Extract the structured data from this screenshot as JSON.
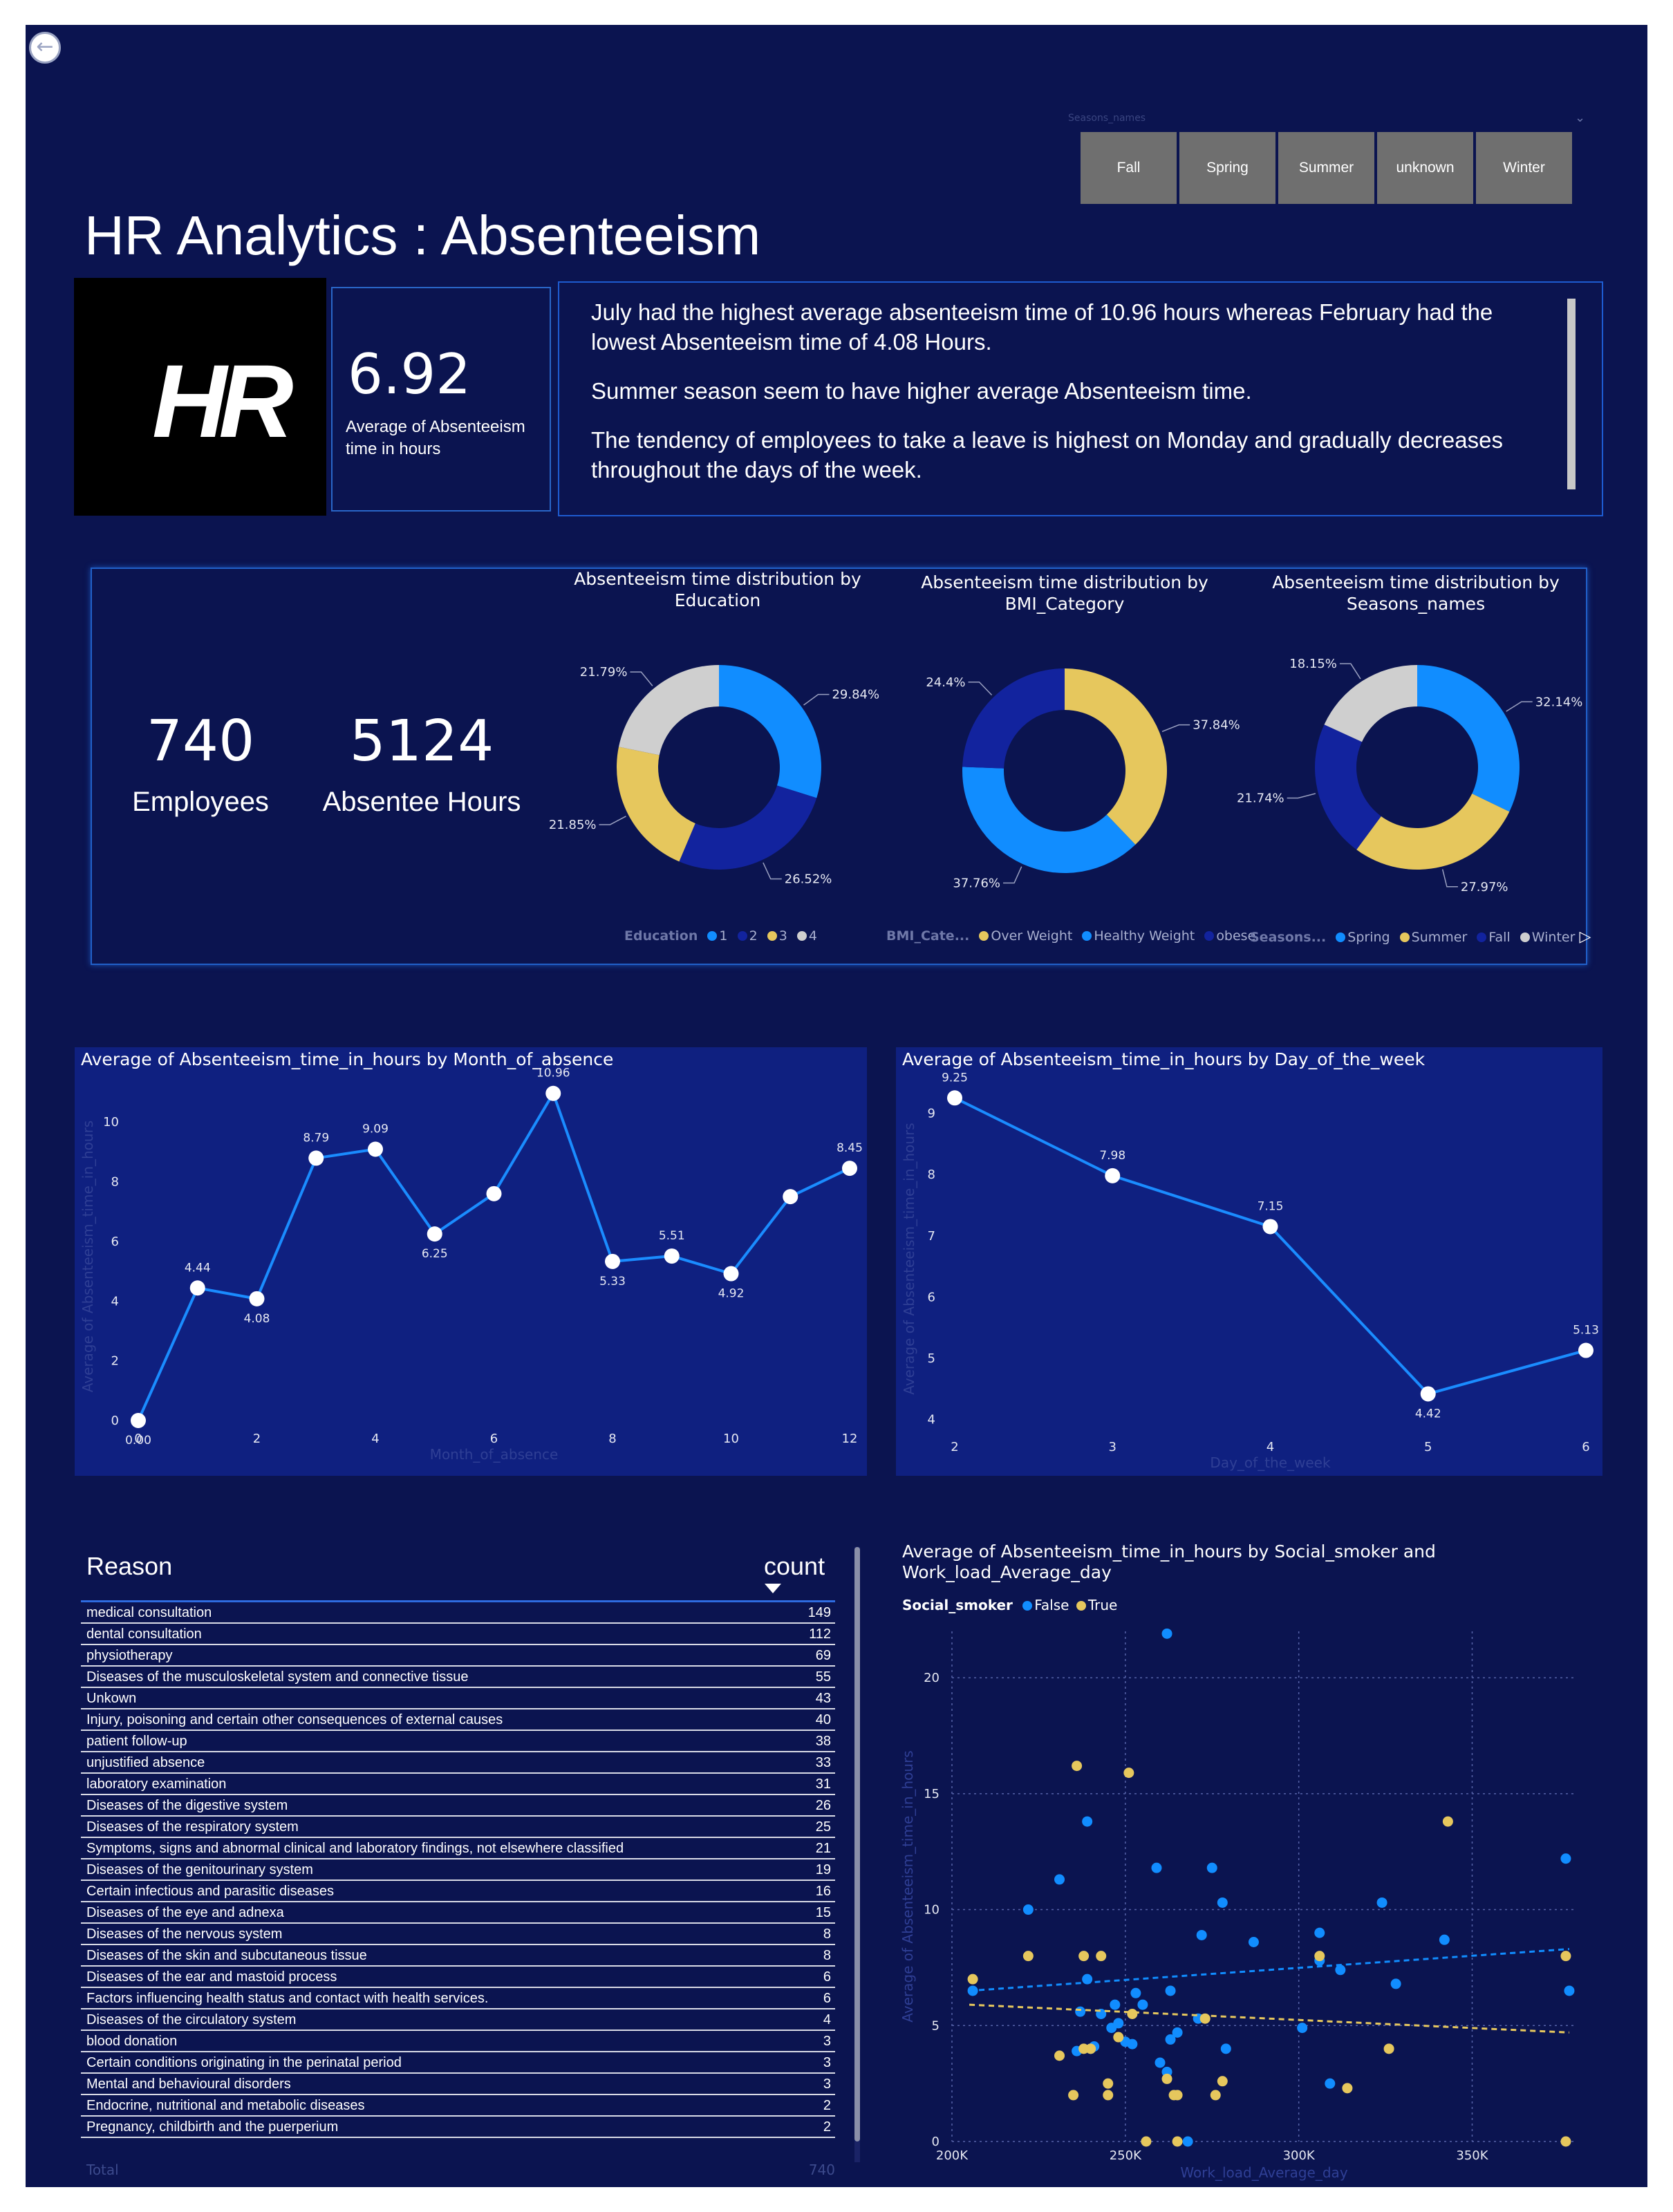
{
  "nav": {
    "back_icon": "arrow-left-icon"
  },
  "slicer": {
    "caption": "Seasons_names",
    "options": [
      "Fall",
      "Spring",
      "Summer",
      "unknown",
      "Winter"
    ]
  },
  "title": "HR Analytics : Absenteeism",
  "logo": {
    "text": "HR"
  },
  "kpi": {
    "value": "6.92",
    "label": "Average of Absenteeism time in hours"
  },
  "insights": [
    "July had the highest average absenteeism time of 10.96 hours whereas February had the lowest Absenteeism time of 4.08 Hours.",
    "Summer season seem to have higher average Absenteeism time.",
    "The tendency of employees to take a leave is highest on Monday and gradually decreases throughout the days of the week."
  ],
  "stats": {
    "employees_value": "740",
    "employees_label": "Employees",
    "hours_value": "5124",
    "hours_label": "Absentee Hours"
  },
  "colors": {
    "blue": "#118dff",
    "navy": "#12239e",
    "yellow": "#e6c75d",
    "grey": "#cfcfcf",
    "line": "#1a8cff"
  },
  "chart_data": [
    {
      "type": "pie",
      "title": "Absenteeism time distribution by Education",
      "legend_title": "Education",
      "legend": [
        "1",
        "2",
        "3",
        "4"
      ],
      "slices": [
        {
          "label": "1",
          "value": 29.84,
          "text": "29.84%",
          "color": "#118dff"
        },
        {
          "label": "2",
          "value": 26.52,
          "text": "26.52%",
          "color": "#12239e"
        },
        {
          "label": "3",
          "value": 21.85,
          "text": "21.85%",
          "color": "#e6c75d"
        },
        {
          "label": "4",
          "value": 21.79,
          "text": "21.79%",
          "color": "#cfcfcf"
        }
      ]
    },
    {
      "type": "pie",
      "title": "Absenteeism time distribution by BMI_Category",
      "legend_title": "BMI_Cate...",
      "legend": [
        "Over Weight",
        "Healthy Weight",
        "obese"
      ],
      "slices": [
        {
          "label": "Over Weight",
          "value": 37.84,
          "text": "37.84%",
          "color": "#e6c75d"
        },
        {
          "label": "Healthy Weight",
          "value": 37.76,
          "text": "37.76%",
          "color": "#118dff"
        },
        {
          "label": "obese",
          "value": 24.4,
          "text": "24.4%",
          "color": "#12239e"
        }
      ]
    },
    {
      "type": "pie",
      "title": "Absenteeism time distribution by Seasons_names",
      "legend_title": "Seasons...",
      "legend": [
        "Spring",
        "Summer",
        "Fall",
        "Winter"
      ],
      "slices": [
        {
          "label": "Spring",
          "value": 32.14,
          "text": "32.14%",
          "color": "#118dff"
        },
        {
          "label": "Summer",
          "value": 27.97,
          "text": "27.97%",
          "color": "#e6c75d"
        },
        {
          "label": "Fall",
          "value": 21.74,
          "text": "21.74%",
          "color": "#12239e"
        },
        {
          "label": "Winter",
          "value": 18.15,
          "text": "18.15%",
          "color": "#cfcfcf"
        }
      ]
    },
    {
      "type": "line",
      "title": "Average of Absenteeism_time_in_hours by Month_of_absence",
      "xlabel": "Month_of_absence",
      "ylabel": "Average of Absenteeism_time_in_hours",
      "xlim": [
        0,
        12
      ],
      "ylim": [
        0,
        11
      ],
      "xticks": [
        0,
        2,
        4,
        6,
        8,
        10,
        12
      ],
      "yticks": [
        0,
        2,
        4,
        6,
        8,
        10
      ],
      "points": [
        {
          "x": 0,
          "y": 0,
          "label": "0.00"
        },
        {
          "x": 1,
          "y": 4.44,
          "label": "4.44"
        },
        {
          "x": 2,
          "y": 4.08,
          "label": "4.08"
        },
        {
          "x": 3,
          "y": 8.79,
          "label": "8.79"
        },
        {
          "x": 4,
          "y": 9.09,
          "label": "9.09"
        },
        {
          "x": 5,
          "y": 6.25,
          "label": "6.25"
        },
        {
          "x": 6,
          "y": 7.6,
          "label": ""
        },
        {
          "x": 7,
          "y": 10.96,
          "label": "10.96"
        },
        {
          "x": 8,
          "y": 5.33,
          "label": "5.33"
        },
        {
          "x": 9,
          "y": 5.51,
          "label": "5.51"
        },
        {
          "x": 10,
          "y": 4.92,
          "label": "4.92"
        },
        {
          "x": 11,
          "y": 7.5,
          "label": ""
        },
        {
          "x": 12,
          "y": 8.45,
          "label": "8.45"
        }
      ]
    },
    {
      "type": "line",
      "title": "Average of Absenteeism_time_in_hours by Day_of_the_week",
      "xlabel": "Day_of_the_week",
      "ylabel": "Average of Absenteeism_time_in_hours",
      "xlim": [
        2,
        6
      ],
      "ylim": [
        3.85,
        9.4
      ],
      "xticks": [
        2,
        3,
        4,
        5,
        6
      ],
      "yticks": [
        4,
        5,
        6,
        7,
        8,
        9
      ],
      "points": [
        {
          "x": 2,
          "y": 9.25,
          "label": "9.25"
        },
        {
          "x": 3,
          "y": 7.98,
          "label": "7.98"
        },
        {
          "x": 4,
          "y": 7.15,
          "label": "7.15"
        },
        {
          "x": 5,
          "y": 4.42,
          "label": "4.42"
        },
        {
          "x": 6,
          "y": 5.13,
          "label": "5.13"
        }
      ]
    },
    {
      "type": "scatter",
      "title": "Average of Absenteeism_time_in_hours by Social_smoker and Work_load_Average_day",
      "legend_title": "Social_smoker",
      "xlabel": "Work_load_Average_day",
      "ylabel": "Average of Absenteeism_time_in_hours",
      "xlim": [
        200000,
        380000
      ],
      "ylim": [
        0,
        22
      ],
      "xticks": [
        {
          "v": 200000,
          "t": "200K"
        },
        {
          "v": 250000,
          "t": "250K"
        },
        {
          "v": 300000,
          "t": "300K"
        },
        {
          "v": 350000,
          "t": "350K"
        }
      ],
      "yticks": [
        0,
        5,
        10,
        15,
        20
      ],
      "series": [
        {
          "name": "False",
          "color": "#118dff",
          "trend": [
            [
              205000,
              6.5
            ],
            [
              378000,
              8.3
            ]
          ],
          "points": [
            [
              206000,
              6.5
            ],
            [
              222000,
              10
            ],
            [
              231000,
              11.3
            ],
            [
              236000,
              3.9
            ],
            [
              237000,
              5.6
            ],
            [
              239000,
              13.8
            ],
            [
              239000,
              7
            ],
            [
              240000,
              4
            ],
            [
              241000,
              4.1
            ],
            [
              243000,
              5.5
            ],
            [
              246000,
              4.9
            ],
            [
              247000,
              5.9
            ],
            [
              248000,
              5.1
            ],
            [
              250000,
              4.3
            ],
            [
              252000,
              4.2
            ],
            [
              253000,
              6.4
            ],
            [
              255000,
              5.9
            ],
            [
              259000,
              11.8
            ],
            [
              260000,
              3.4
            ],
            [
              262000,
              3
            ],
            [
              262000,
              21.9
            ],
            [
              263000,
              6.5
            ],
            [
              263000,
              4.4
            ],
            [
              265000,
              4.7
            ],
            [
              268000,
              0
            ],
            [
              271000,
              5.3
            ],
            [
              272000,
              8.9
            ],
            [
              275000,
              11.8
            ],
            [
              278000,
              10.3
            ],
            [
              279000,
              4
            ],
            [
              287000,
              8.6
            ],
            [
              301000,
              4.9
            ],
            [
              306000,
              9
            ],
            [
              306000,
              7.8
            ],
            [
              312000,
              7.4
            ],
            [
              309000,
              2.5
            ],
            [
              324000,
              10.3
            ],
            [
              328000,
              6.8
            ],
            [
              342000,
              8.7
            ],
            [
              377000,
              12.2
            ],
            [
              378000,
              6.5
            ]
          ]
        },
        {
          "name": "True",
          "color": "#e6c75d",
          "trend": [
            [
              205000,
              5.9
            ],
            [
              378000,
              4.7
            ]
          ],
          "points": [
            [
              206000,
              7
            ],
            [
              222000,
              8
            ],
            [
              231000,
              3.7
            ],
            [
              235000,
              2
            ],
            [
              236000,
              16.2
            ],
            [
              238000,
              8
            ],
            [
              238000,
              4
            ],
            [
              240000,
              4
            ],
            [
              243000,
              8
            ],
            [
              245000,
              2.5
            ],
            [
              245000,
              2
            ],
            [
              248000,
              4.5
            ],
            [
              251000,
              15.9
            ],
            [
              252000,
              5.5
            ],
            [
              256000,
              0
            ],
            [
              262000,
              2.7
            ],
            [
              264000,
              2
            ],
            [
              265000,
              0
            ],
            [
              265000,
              2
            ],
            [
              273000,
              5.3
            ],
            [
              276000,
              2
            ],
            [
              278000,
              2.6
            ],
            [
              306000,
              8
            ],
            [
              314000,
              2.3
            ],
            [
              326000,
              4
            ],
            [
              343000,
              13.8
            ],
            [
              377000,
              8
            ],
            [
              377000,
              0
            ]
          ]
        }
      ]
    }
  ],
  "table": {
    "headers": {
      "reason": "Reason",
      "count": "count"
    },
    "rows": [
      {
        "reason": "medical consultation",
        "count": "149"
      },
      {
        "reason": "dental consultation",
        "count": "112"
      },
      {
        "reason": "physiotherapy",
        "count": "69"
      },
      {
        "reason": "Diseases of the musculoskeletal system and connective tissue",
        "count": "55"
      },
      {
        "reason": "Unkown",
        "count": "43"
      },
      {
        "reason": "Injury, poisoning and certain other consequences of external causes",
        "count": "40"
      },
      {
        "reason": "patient follow-up",
        "count": "38"
      },
      {
        "reason": "unjustified absence",
        "count": "33"
      },
      {
        "reason": "laboratory examination",
        "count": "31"
      },
      {
        "reason": "Diseases of the digestive system",
        "count": "26"
      },
      {
        "reason": "Diseases of the respiratory system",
        "count": "25"
      },
      {
        "reason": "Symptoms, signs and abnormal clinical and laboratory findings, not elsewhere classified",
        "count": "21"
      },
      {
        "reason": "Diseases of the genitourinary system",
        "count": "19"
      },
      {
        "reason": "Certain infectious and parasitic diseases",
        "count": "16"
      },
      {
        "reason": "Diseases of the eye and adnexa",
        "count": "15"
      },
      {
        "reason": "Diseases of the nervous system",
        "count": "8"
      },
      {
        "reason": "Diseases of the skin and subcutaneous tissue",
        "count": "8"
      },
      {
        "reason": "Diseases of the ear and mastoid process",
        "count": "6"
      },
      {
        "reason": "Factors influencing health status and contact with health services.",
        "count": "6"
      },
      {
        "reason": "Diseases of the circulatory system",
        "count": "4"
      },
      {
        "reason": "blood donation",
        "count": "3"
      },
      {
        "reason": "Certain conditions originating in the perinatal period",
        "count": "3"
      },
      {
        "reason": "Mental and behavioural disorders",
        "count": "3"
      },
      {
        "reason": "Endocrine, nutritional and metabolic diseases",
        "count": "2"
      },
      {
        "reason": "Pregnancy, childbirth and the puerperium",
        "count": "2"
      }
    ],
    "total_label": "Total",
    "total_value": "740"
  }
}
